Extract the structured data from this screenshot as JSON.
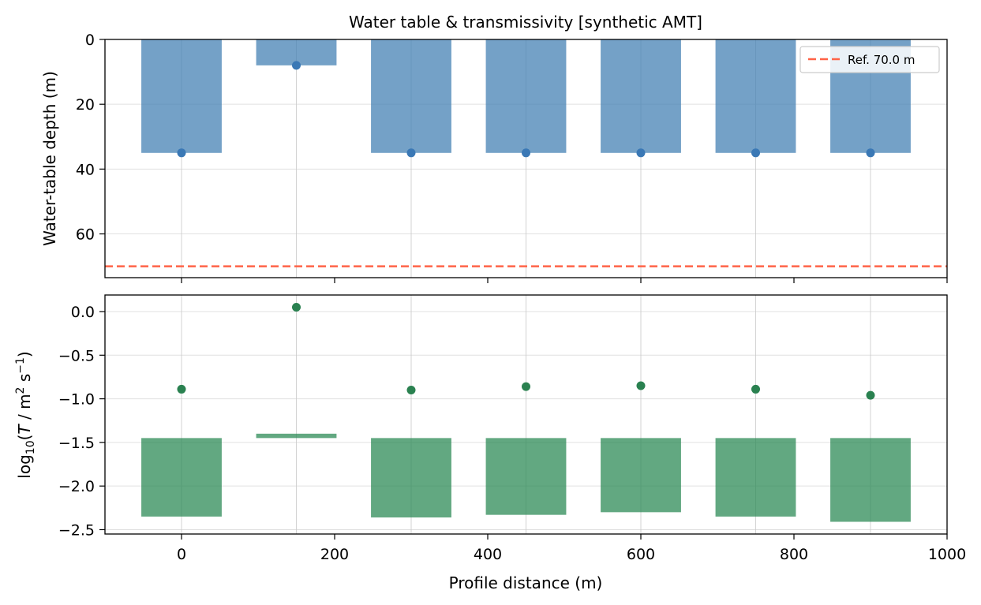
{
  "colors": {
    "depth_bar": "#4682b4",
    "depth_point": "#3a78b5",
    "log_bar": "#2e8b57",
    "log_point": "#2a8150",
    "ref_line": "#ff6347",
    "grid": "#e0e0e0",
    "stem": "#c8c8c8"
  },
  "chart_data": [
    {
      "type": "bar",
      "title": "Water table & transmissivity [synthetic AMT]",
      "ylabel": "Water-table depth (m)",
      "xlabel": "",
      "xlim": [
        -100,
        1000
      ],
      "ylim": [
        73.5,
        0
      ],
      "y_inverted": true,
      "grid": true,
      "x": [
        0,
        150,
        300,
        450,
        600,
        750,
        900
      ],
      "bar_width": 105,
      "bar_values": [
        35,
        8,
        35,
        35,
        35,
        35,
        35
      ],
      "point_values": [
        35,
        8,
        35,
        35,
        35,
        35,
        35
      ],
      "yticks": [
        0,
        20,
        40,
        60
      ],
      "xticks": [
        0,
        200,
        400,
        600,
        800,
        1000
      ],
      "xtick_labels_visible": false,
      "reference_line": {
        "value": 70.0,
        "label": "Ref. 70.0 m",
        "style": "dashed"
      },
      "legend_placement": "top-right"
    },
    {
      "type": "bar",
      "title": "",
      "ylabel": "log10(T / m² s⁻¹)",
      "xlabel": "Profile distance (m)",
      "xlim": [
        -100,
        1000
      ],
      "ylim": [
        -2.55,
        0.19
      ],
      "grid": true,
      "x": [
        0,
        150,
        300,
        450,
        600,
        750,
        900
      ],
      "bar_width": 105,
      "bar_bottom": -1.45,
      "bar_tops": [
        -2.35,
        -1.4,
        -2.36,
        -2.33,
        -2.3,
        -2.35,
        -2.41
      ],
      "point_values": [
        -0.89,
        0.05,
        -0.9,
        -0.86,
        -0.85,
        -0.89,
        -0.96
      ],
      "yticks": [
        0.0,
        -0.5,
        -1.0,
        -1.5,
        -2.0,
        -2.5
      ],
      "ytick_labels": [
        "0.0",
        "−0.5",
        "−1.0",
        "−1.5",
        "−2.0",
        "−2.5"
      ],
      "xticks": [
        0,
        200,
        400,
        600,
        800,
        1000
      ],
      "xtick_labels": [
        "0",
        "200",
        "400",
        "600",
        "800",
        "1000"
      ]
    }
  ]
}
